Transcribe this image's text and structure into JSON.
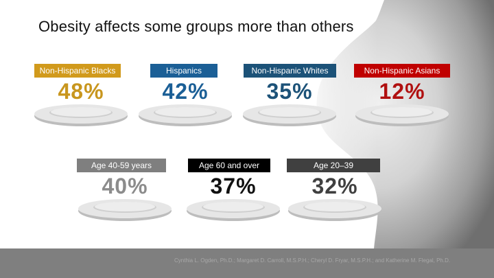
{
  "slide": {
    "title": "Obesity affects some groups more than others",
    "citation": "Cynthia L. Ogden, Ph.D.; Margaret D. Carroll, M.S.P.H.; Cheryl D. Fryar, M.S.P.H.; and Katherine M. Flegal, Ph.D."
  },
  "groups": [
    {
      "label": "Non-Hispanic Blacks",
      "value": "48%",
      "label_bg": "#d19a1c",
      "value_color": "#c8961e"
    },
    {
      "label": "Hispanics",
      "value": "42%",
      "label_bg": "#1b5f96",
      "value_color": "#1b5f96"
    },
    {
      "label": "Non-Hispanic Whites",
      "value": "35%",
      "label_bg": "#1c5278",
      "value_color": "#1c5278"
    },
    {
      "label": "Non-Hispanic Asians",
      "value": "12%",
      "label_bg": "#c00000",
      "value_color": "#b01010"
    },
    {
      "label": "Age 40-59 years",
      "value": "40%",
      "label_bg": "#7f7f7f",
      "value_color": "#8c8c8c"
    },
    {
      "label": "Age 60 and over",
      "value": "37%",
      "label_bg": "#000000",
      "value_color": "#111111"
    },
    {
      "label": "Age 20–39",
      "value": "32%",
      "label_bg": "#404040",
      "value_color": "#404040"
    }
  ]
}
